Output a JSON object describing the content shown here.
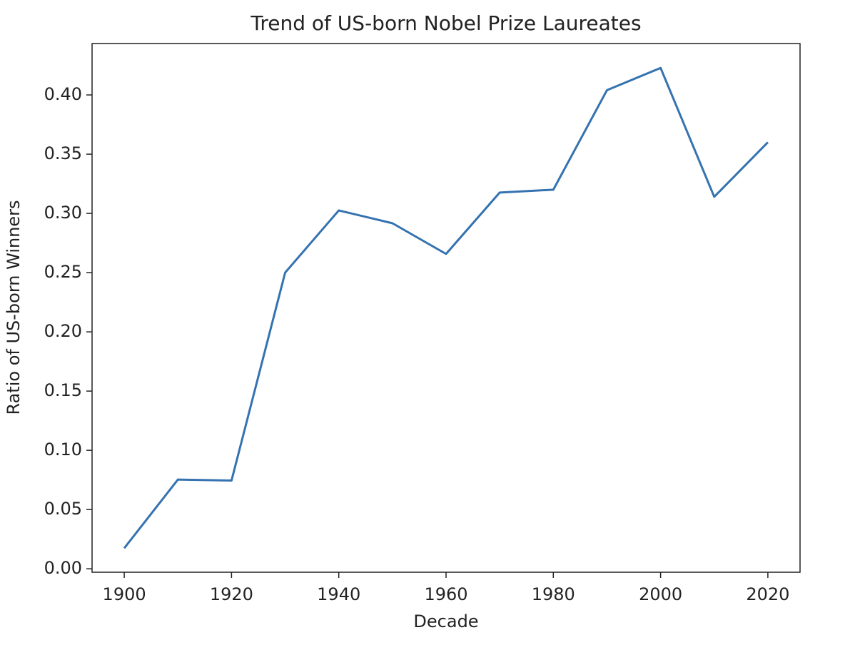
{
  "chart_data": {
    "type": "line",
    "title": "Trend of US-born Nobel Prize Laureates",
    "x_label": "Decade",
    "y_label": "Ratio of US-born Winners",
    "x": [
      1900,
      1910,
      1920,
      1930,
      1940,
      1950,
      1960,
      1970,
      1980,
      1990,
      2000,
      2010,
      2020
    ],
    "series": [
      {
        "color": "#3572b0",
        "values": [
          0.0174,
          0.0753,
          0.0745,
          0.25,
          0.3025,
          0.2917,
          0.2658,
          0.3176,
          0.32,
          0.404,
          0.4228,
          0.314,
          0.36
        ]
      }
    ],
    "xlim": [
      1894,
      2026
    ],
    "ylim": [
      -0.0029,
      0.4434
    ],
    "xticks": [
      1900,
      1920,
      1940,
      1960,
      1980,
      2000,
      2020
    ],
    "yticks": [
      {
        "value": 0,
        "label": "0.00"
      },
      {
        "value": 0.05,
        "label": "0.05"
      },
      {
        "value": 0.1,
        "label": "0.10"
      },
      {
        "value": 0.15,
        "label": "0.15"
      },
      {
        "value": 0.2,
        "label": "0.20"
      },
      {
        "value": 0.25,
        "label": "0.25"
      },
      {
        "value": 0.3,
        "label": "0.30"
      },
      {
        "value": 0.35,
        "label": "0.35"
      },
      {
        "value": 0.4,
        "label": "0.40"
      }
    ],
    "grid": false
  }
}
